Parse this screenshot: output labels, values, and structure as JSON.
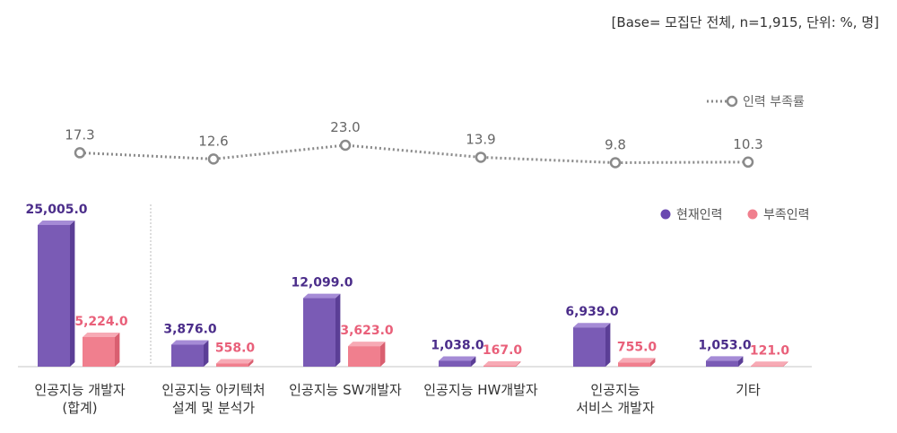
{
  "base_note": "[Base= 모집단 전체, n=1,915, 단위: %, 명]",
  "legend": {
    "line_label": "인력 부족률",
    "current_label": "현재인력",
    "shortage_label": "부족인력"
  },
  "colors": {
    "current": "#7a5bb5",
    "shortage": "#f07f8e",
    "line": "#8a8a8a",
    "current_value_text": "#4b2d8a",
    "shortage_value_text": "#e9607a"
  },
  "chart_data": {
    "type": "bar",
    "categories": [
      [
        "인공지능 개발자",
        "(합계)"
      ],
      [
        "인공지능 아키텍처",
        "설계 및 분석가"
      ],
      [
        "인공지능 SW개발자"
      ],
      [
        "인공지능 HW개발자"
      ],
      [
        "인공지능",
        "서비스 개발자"
      ],
      [
        "기타"
      ]
    ],
    "series": [
      {
        "name": "현재인력",
        "values": [
          25005.0,
          3876.0,
          12099.0,
          1038.0,
          6939.0,
          1053.0
        ],
        "labels": [
          "25,005.0",
          "3,876.0",
          "12,099.0",
          "1,038.0",
          "6,939.0",
          "1,053.0"
        ]
      },
      {
        "name": "부족인력",
        "values": [
          5224.0,
          558.0,
          3623.0,
          167.0,
          755.0,
          121.0
        ],
        "labels": [
          "5,224.0",
          "558.0",
          "3,623.0",
          "167.0",
          "755.0",
          "121.0"
        ]
      }
    ],
    "line_series": {
      "name": "인력 부족률",
      "values": [
        17.3,
        12.6,
        23.0,
        13.9,
        9.8,
        10.3
      ],
      "labels": [
        "17.3",
        "12.6",
        "23.0",
        "13.9",
        "9.8",
        "10.3"
      ]
    }
  }
}
